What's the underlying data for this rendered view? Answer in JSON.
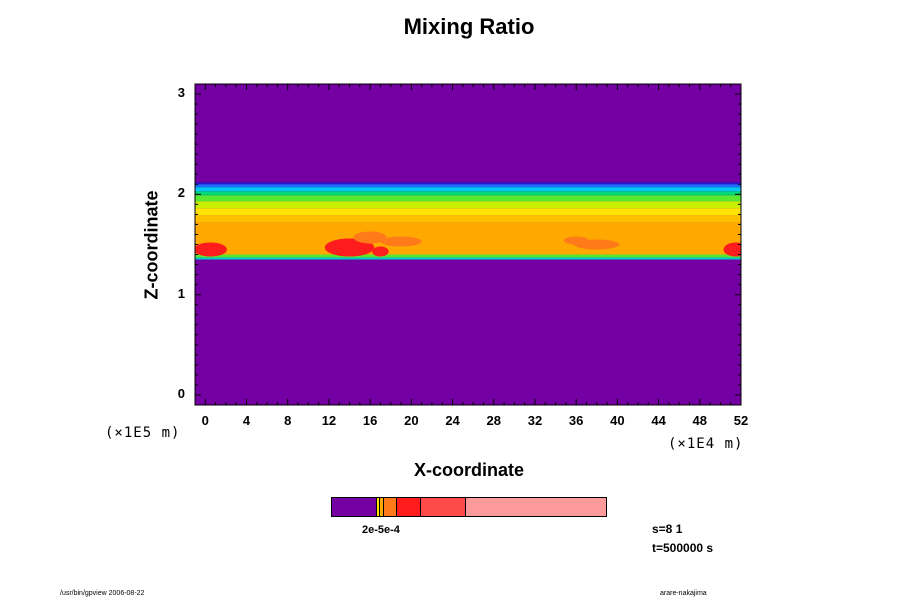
{
  "chart_data": {
    "type": "heatmap",
    "title": "Mixing Ratio",
    "xlabel": "X-coordinate",
    "ylabel": "Z-coordinate",
    "x_unit": "(×1E4 m)",
    "y_unit": "(×1E5 m)",
    "xlim": [
      -1,
      52
    ],
    "ylim": [
      -0.1,
      3.1
    ],
    "x_ticks": [
      "0",
      "4",
      "8",
      "12",
      "16",
      "20",
      "24",
      "28",
      "32",
      "36",
      "40",
      "44",
      "48",
      "52"
    ],
    "y_ticks": [
      "0",
      "1",
      "2",
      "3"
    ],
    "background_color": "#7400a4",
    "bands": [
      {
        "z0": 2.12,
        "z1": 2.1,
        "color": "#2a18c8"
      },
      {
        "z0": 2.1,
        "z1": 2.07,
        "color": "#1c6cff"
      },
      {
        "z0": 2.07,
        "z1": 2.03,
        "color": "#00c8f0"
      },
      {
        "z0": 2.03,
        "z1": 1.99,
        "color": "#00d878"
      },
      {
        "z0": 1.99,
        "z1": 1.93,
        "color": "#58e830"
      },
      {
        "z0": 1.93,
        "z1": 1.86,
        "color": "#c8f000"
      },
      {
        "z0": 1.86,
        "z1": 1.79,
        "color": "#ffe400"
      },
      {
        "z0": 1.79,
        "z1": 1.72,
        "color": "#ffc000"
      },
      {
        "z0": 1.72,
        "z1": 1.4,
        "color": "#ffa800"
      },
      {
        "z0": 1.4,
        "z1": 1.37,
        "color": "#58e830"
      },
      {
        "z0": 1.37,
        "z1": 1.35,
        "color": "#00c8c8"
      }
    ],
    "patches": [
      {
        "x": 0.5,
        "z": 1.45,
        "rx": 1.6,
        "rz": 0.07,
        "color": "#ff1c1c"
      },
      {
        "x": 14.0,
        "z": 1.47,
        "rx": 2.4,
        "rz": 0.09,
        "color": "#ff1c1c"
      },
      {
        "x": 17.0,
        "z": 1.43,
        "rx": 0.8,
        "rz": 0.05,
        "color": "#ff1c1c"
      },
      {
        "x": 51.5,
        "z": 1.45,
        "rx": 1.2,
        "rz": 0.07,
        "color": "#ff1c1c"
      },
      {
        "x": 16.0,
        "z": 1.57,
        "rx": 1.6,
        "rz": 0.06,
        "color": "#ff7a18"
      },
      {
        "x": 19.0,
        "z": 1.53,
        "rx": 2.0,
        "rz": 0.05,
        "color": "#ff7a18"
      },
      {
        "x": 36.0,
        "z": 1.54,
        "rx": 1.2,
        "rz": 0.04,
        "color": "#ff7a18"
      },
      {
        "x": 38.0,
        "z": 1.5,
        "rx": 2.2,
        "rz": 0.05,
        "color": "#ff7a18"
      }
    ],
    "colorbar": {
      "segments": [
        {
          "frac": 0.165,
          "color": "#7400a4"
        },
        {
          "frac": 0.012,
          "color": "#ffe400"
        },
        {
          "frac": 0.012,
          "color": "#ffa800"
        },
        {
          "frac": 0.05,
          "color": "#ff7a18"
        },
        {
          "frac": 0.085,
          "color": "#ff1c1c"
        },
        {
          "frac": 0.165,
          "color": "#ff4a4a"
        },
        {
          "frac": 0.511,
          "color": "#ff9a9a"
        }
      ],
      "label": "2e-5e-4"
    }
  },
  "info": {
    "s": "s=8 1",
    "t": "t=500000 s"
  },
  "footer": {
    "left": "/usr/bin/gpview 2006-08-22",
    "right": "arare-nakajima"
  }
}
